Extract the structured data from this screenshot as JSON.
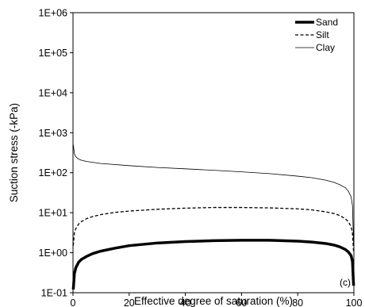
{
  "chart_data": {
    "type": "line",
    "xlabel": "Effective degree of saturation (%)",
    "ylabel": "Suction stress (-kPa)",
    "xlim": [
      0,
      100
    ],
    "ylim": [
      0.1,
      1000000
    ],
    "y_scale": "log",
    "grid": false,
    "legend_position": "top-right",
    "panel_label": "(c)",
    "x_ticks": [
      0,
      20,
      40,
      60,
      80,
      100
    ],
    "y_ticks": [
      "1E-01",
      "1E+00",
      "1E+01",
      "1E+02",
      "1E+03",
      "1E+04",
      "1E+05",
      "1E+06"
    ],
    "series": [
      {
        "name": "Sand",
        "line_style": "solid-thick",
        "x": [
          0.1,
          0.5,
          1,
          2,
          3,
          5,
          7,
          10,
          15,
          20,
          30,
          40,
          50,
          60,
          70,
          80,
          85,
          90,
          93,
          95,
          97,
          98,
          99,
          99.5,
          99.9
        ],
        "y": [
          0.12,
          0.3,
          0.42,
          0.58,
          0.68,
          0.82,
          0.95,
          1.1,
          1.3,
          1.5,
          1.75,
          1.9,
          2.0,
          2.05,
          2.05,
          1.95,
          1.85,
          1.7,
          1.55,
          1.4,
          1.2,
          1.05,
          0.85,
          0.6,
          0.15
        ]
      },
      {
        "name": "Silt",
        "line_style": "dashed",
        "x": [
          0.1,
          0.5,
          1,
          2,
          3,
          5,
          7,
          10,
          15,
          20,
          30,
          40,
          50,
          60,
          70,
          80,
          85,
          90,
          93,
          95,
          97,
          98,
          99,
          99.5,
          99.9
        ],
        "y": [
          1.5,
          3.2,
          4.0,
          5.2,
          6.0,
          7.2,
          8.0,
          9.0,
          10.2,
          11.0,
          12.2,
          13.0,
          13.5,
          13.5,
          13.2,
          12.5,
          11.8,
          10.5,
          9.5,
          8.5,
          7.0,
          6.0,
          4.5,
          3.0,
          1.0
        ]
      },
      {
        "name": "Clay",
        "line_style": "solid-thin",
        "x": [
          0.1,
          0.5,
          1,
          2,
          3,
          5,
          10,
          20,
          30,
          40,
          50,
          60,
          70,
          80,
          85,
          90,
          93,
          95,
          97,
          98,
          99,
          99.5,
          99.9
        ],
        "y": [
          500,
          300,
          250,
          220,
          205,
          190,
          170,
          150,
          135,
          125,
          115,
          105,
          95,
          82,
          75,
          65,
          57,
          50,
          42,
          35,
          25,
          15,
          1.5
        ]
      }
    ]
  }
}
